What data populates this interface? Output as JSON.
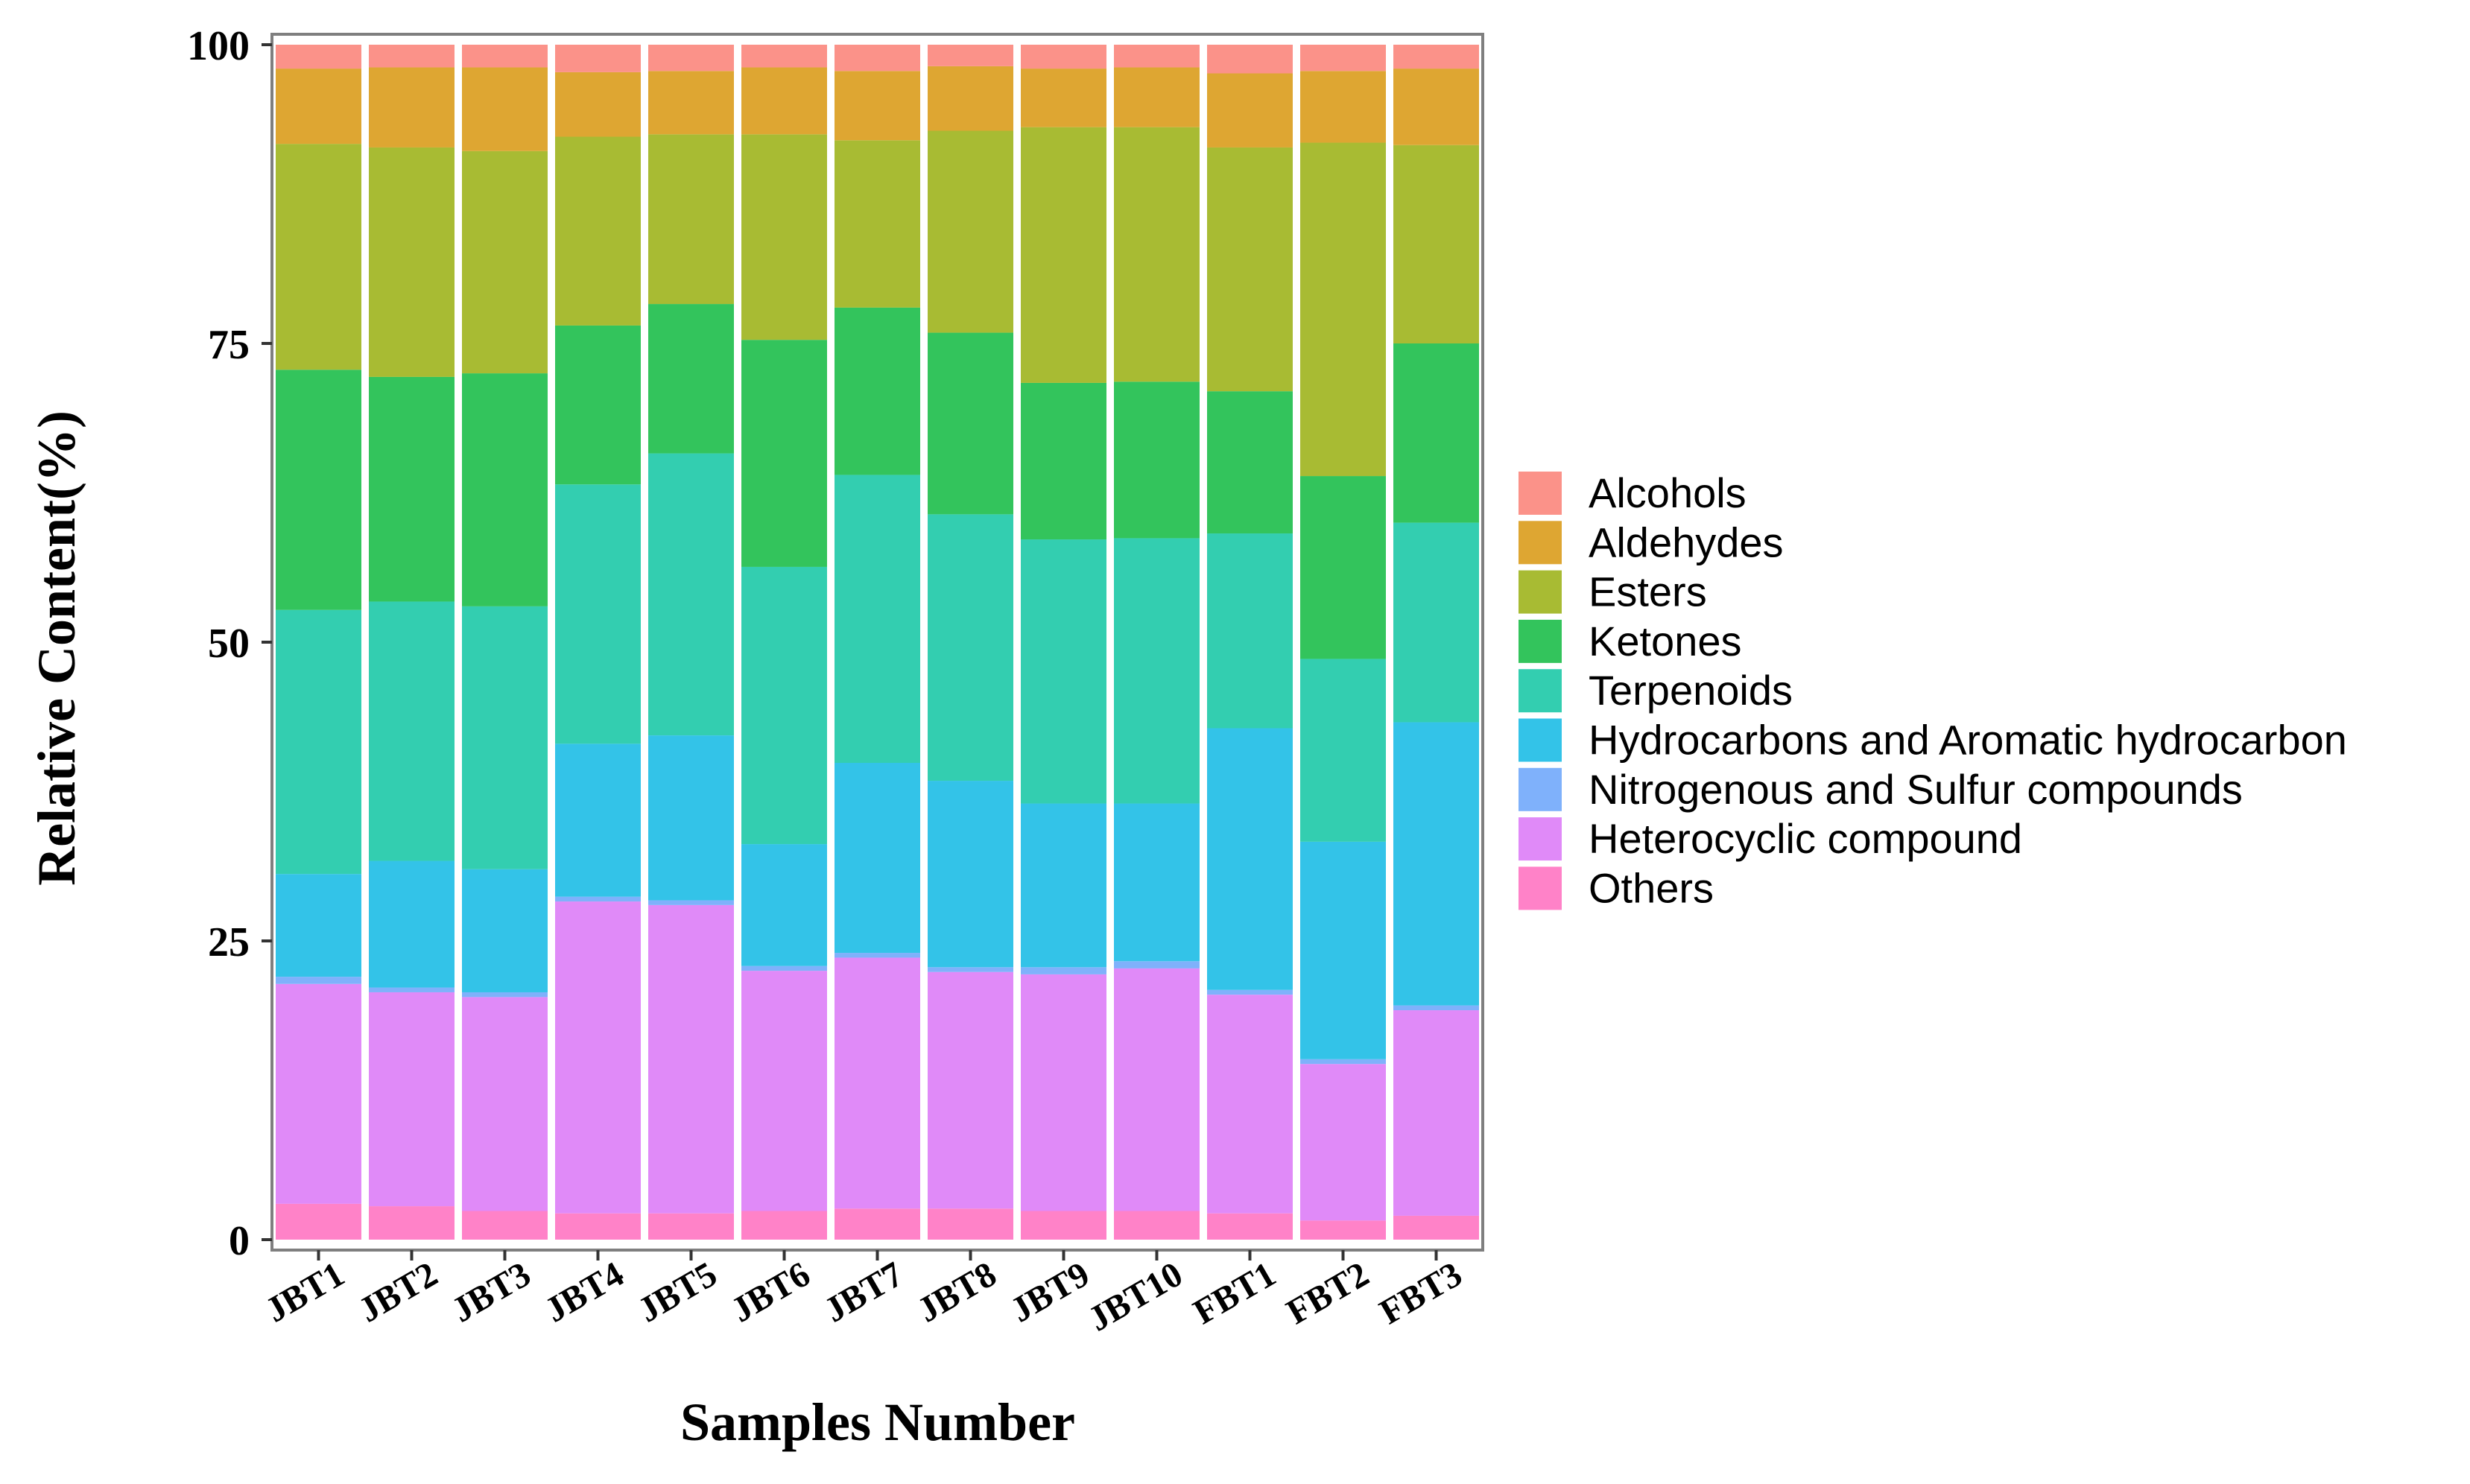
{
  "chart_data": {
    "type": "bar",
    "stacked": true,
    "title": "",
    "xlabel": "Samples Number",
    "ylabel": "Relative Content(%)",
    "ylim": [
      0,
      100
    ],
    "yticks": [
      "0",
      "25",
      "50",
      "75",
      "100"
    ],
    "legend_position": "right",
    "categories": [
      "JBT1",
      "JBT2",
      "JBT3",
      "JBT4",
      "JBT5",
      "JBT6",
      "JBT7",
      "JBT8",
      "JBT9",
      "JBT10",
      "FBT1",
      "FBT2",
      "FBT3"
    ],
    "series": [
      {
        "name": "Others",
        "color": "#FF82C8",
        "values": [
          3.0,
          2.8,
          2.4,
          2.2,
          2.2,
          2.4,
          2.6,
          2.6,
          2.4,
          2.4,
          2.2,
          1.6,
          2.0
        ]
      },
      {
        "name": "Heterocyclic compound",
        "color": "#E08AF8",
        "values": [
          18.4,
          17.9,
          17.9,
          26.1,
          25.8,
          20.1,
          21.0,
          19.8,
          19.8,
          20.3,
          18.3,
          13.1,
          17.2
        ]
      },
      {
        "name": "Nitrogenous and Sulfur compounds",
        "color": "#7FB1FB",
        "values": [
          0.6,
          0.4,
          0.4,
          0.4,
          0.4,
          0.4,
          0.4,
          0.4,
          0.6,
          0.6,
          0.4,
          0.4,
          0.4
        ]
      },
      {
        "name": "Hydrocarbons and Aromatic hydrocarbon",
        "color": "#33C3E8",
        "values": [
          8.6,
          10.6,
          10.3,
          12.8,
          13.8,
          10.2,
          15.9,
          15.6,
          13.7,
          13.2,
          21.9,
          18.2,
          23.7
        ]
      },
      {
        "name": "Terpenoids",
        "color": "#33CEB0",
        "values": [
          22.1,
          21.7,
          22.0,
          21.7,
          23.6,
          23.2,
          24.1,
          22.3,
          22.1,
          22.2,
          16.3,
          15.3,
          16.7
        ]
      },
      {
        "name": "Ketones",
        "color": "#33C45C",
        "values": [
          20.1,
          18.8,
          19.5,
          13.3,
          12.5,
          19.0,
          14.0,
          15.2,
          13.1,
          13.1,
          11.9,
          15.3,
          15.0
        ]
      },
      {
        "name": "Esters",
        "color": "#A8BB33",
        "values": [
          18.9,
          19.2,
          18.6,
          15.8,
          14.2,
          17.2,
          14.0,
          16.9,
          21.4,
          21.3,
          20.4,
          27.9,
          16.6
        ]
      },
      {
        "name": "Aldehydes",
        "color": "#DEA632",
        "values": [
          6.3,
          6.7,
          7.0,
          5.4,
          5.3,
          5.6,
          5.8,
          5.4,
          4.9,
          5.0,
          6.2,
          6.0,
          6.4
        ]
      },
      {
        "name": "Alcohols",
        "color": "#FB9289",
        "values": [
          2.0,
          1.9,
          1.9,
          2.3,
          2.2,
          1.9,
          2.2,
          1.8,
          2.0,
          1.9,
          2.4,
          2.2,
          2.0
        ]
      }
    ],
    "legend": [
      "Alcohols",
      "Aldehydes",
      "Esters",
      "Ketones",
      "Terpenoids",
      "Hydrocarbons and Aromatic hydrocarbon",
      "Nitrogenous and Sulfur compounds",
      "Heterocyclic compound",
      "Others"
    ]
  }
}
